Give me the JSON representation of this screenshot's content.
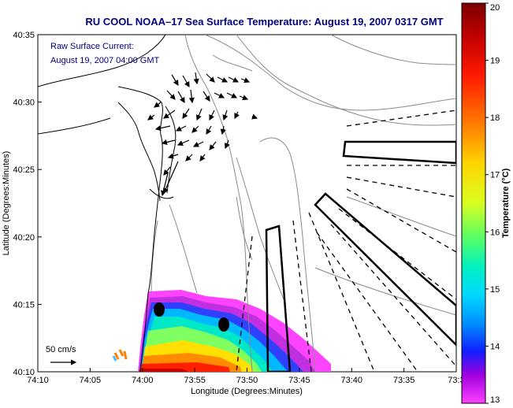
{
  "title": "RU COOL  NOAA–17  Sea Surface Temperature:  August 19, 2007 0317 GMT",
  "legend": {
    "line1": "Raw Surface Current:",
    "line2": "August 19, 2007 04:00 GMT",
    "scale_label": "50 cm/s"
  },
  "axes": {
    "xlabel": "Longitude (Degrees:Minutes)",
    "ylabel": "Latitude (Degrees:Minutes)",
    "x_ticks": [
      "74:10",
      "74:05",
      "74:00",
      "73:55",
      "73:50",
      "73:45",
      "73:40",
      "73:35",
      "73:3"
    ],
    "y_ticks": [
      "40:35",
      "40:30",
      "40:25",
      "40:20",
      "40:15",
      "40:10"
    ]
  },
  "colorbar": {
    "label": "Temperature (°C)",
    "min": 13,
    "max": 20,
    "ticks": [
      "20",
      "19",
      "18",
      "17",
      "16",
      "15",
      "14",
      "13"
    ]
  },
  "colors": {
    "title": "#000080",
    "coast": "#000000",
    "bathymetry": "#8a8a8a",
    "vectors": "#000000"
  }
}
